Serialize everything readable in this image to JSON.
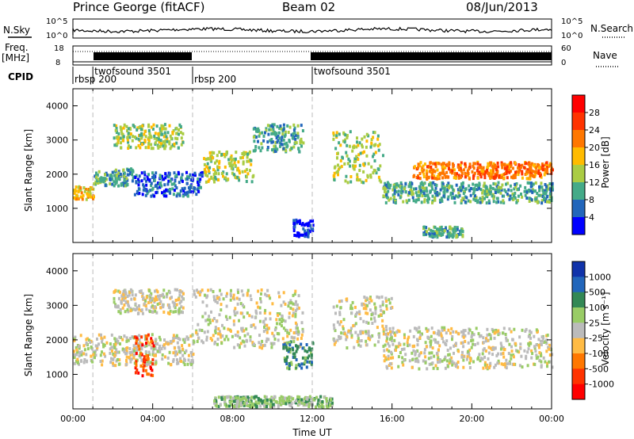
{
  "header": {
    "station": "Prince George (fitACF)",
    "beam": "Beam 02",
    "date": "08/Jun/2013"
  },
  "summary_panel": {
    "nsky_label": "N.Sky",
    "nsearch_label": "N.Search",
    "nsky_ticks": [
      "10^5",
      "10^0"
    ],
    "nsearch_ticks": [
      "10^5",
      "10^0"
    ],
    "freq_label_1": "Freq.",
    "freq_label_2": "[MHz]",
    "freq_ticks": [
      "18",
      "8"
    ],
    "nave_label": "Nave",
    "nave_ticks": [
      "60",
      "0"
    ],
    "cpid_label": "CPID"
  },
  "chart_data": [
    {
      "type": "heatmap",
      "name": "power",
      "ylabel": "Slant Range [km]",
      "xlabel": "",
      "y_ticks": [
        "1000",
        "2000",
        "3000",
        "4000"
      ],
      "ylim": [
        0,
        4500
      ],
      "colorbar": {
        "label": "Power [dB]",
        "ticks": [
          "28",
          "24",
          "20",
          "16",
          "12",
          "8",
          "4"
        ],
        "colors": [
          "#ff0000",
          "#ff3300",
          "#ff7700",
          "#ffbb00",
          "#aacc44",
          "#44aa88",
          "#2266bb",
          "#0000ff"
        ]
      },
      "scatter_bands": [
        {
          "t0": 0.0,
          "t1": 1.0,
          "r0": 1300,
          "r1": 1700,
          "level": 3
        },
        {
          "t0": 1.0,
          "t1": 3.0,
          "r0": 1700,
          "r1": 2200,
          "level": 5
        },
        {
          "t0": 2.0,
          "t1": 5.5,
          "r0": 2800,
          "r1": 3500,
          "level": 4
        },
        {
          "t0": 3.0,
          "t1": 6.5,
          "r0": 1400,
          "r1": 2100,
          "level": 6
        },
        {
          "t0": 6.5,
          "t1": 9.0,
          "r0": 1800,
          "r1": 2700,
          "level": 4
        },
        {
          "t0": 9.0,
          "t1": 11.5,
          "r0": 2700,
          "r1": 3500,
          "level": 5
        },
        {
          "t0": 11.0,
          "t1": 12.0,
          "r0": 200,
          "r1": 700,
          "level": 7
        },
        {
          "t0": 13.0,
          "t1": 15.5,
          "r0": 1800,
          "r1": 3300,
          "level": 4
        },
        {
          "t0": 15.5,
          "t1": 24.0,
          "r0": 1200,
          "r1": 1800,
          "level": 5
        },
        {
          "t0": 17.0,
          "t1": 24.0,
          "r0": 1900,
          "r1": 2400,
          "level": 2
        },
        {
          "t0": 17.5,
          "t1": 19.5,
          "r0": 200,
          "r1": 500,
          "level": 5
        }
      ]
    },
    {
      "type": "heatmap",
      "name": "velocity",
      "ylabel": "Slant Range [km]",
      "xlabel": "Time UT",
      "x_ticks": [
        "00:00",
        "04:00",
        "08:00",
        "12:00",
        "16:00",
        "20:00",
        "00:00"
      ],
      "y_ticks": [
        "1000",
        "2000",
        "3000",
        "4000"
      ],
      "ylim": [
        0,
        4500
      ],
      "colorbar": {
        "label": "Velocity [m s⁻¹]",
        "ticks": [
          "1000",
          "500",
          "100",
          "25",
          "-25",
          "-100",
          "-500",
          "-1000"
        ],
        "colors": [
          "#1133aa",
          "#2266bb",
          "#338855",
          "#99cc66",
          "#bbbbbb",
          "#ffbb44",
          "#ff7700",
          "#ff3300",
          "#ff0000"
        ]
      },
      "scatter_bands": [
        {
          "t0": 0.0,
          "t1": 6.0,
          "r0": 1300,
          "r1": 2200,
          "level": 4
        },
        {
          "t0": 2.0,
          "t1": 5.5,
          "r0": 2800,
          "r1": 3500,
          "level": 4
        },
        {
          "t0": 3.0,
          "t1": 4.0,
          "r0": 1000,
          "r1": 2200,
          "level": 7
        },
        {
          "t0": 6.0,
          "t1": 11.5,
          "r0": 1800,
          "r1": 3500,
          "level": 4
        },
        {
          "t0": 10.5,
          "t1": 12.0,
          "r0": 1200,
          "r1": 2000,
          "level": 2
        },
        {
          "t0": 13.0,
          "t1": 16.0,
          "r0": 1800,
          "r1": 3300,
          "level": 4
        },
        {
          "t0": 15.5,
          "t1": 24.0,
          "r0": 1200,
          "r1": 2400,
          "level": 4
        },
        {
          "t0": 7.0,
          "t1": 13.0,
          "r0": 100,
          "r1": 400,
          "level": 3
        }
      ]
    }
  ],
  "cpid_segments": [
    {
      "start": 0.0,
      "label": "rbsp 200"
    },
    {
      "start": 1.0,
      "label": "twofsound 3501"
    },
    {
      "start": 6.0,
      "label": "rbsp 200"
    },
    {
      "start": 12.0,
      "label": "twofsound 3501"
    }
  ]
}
